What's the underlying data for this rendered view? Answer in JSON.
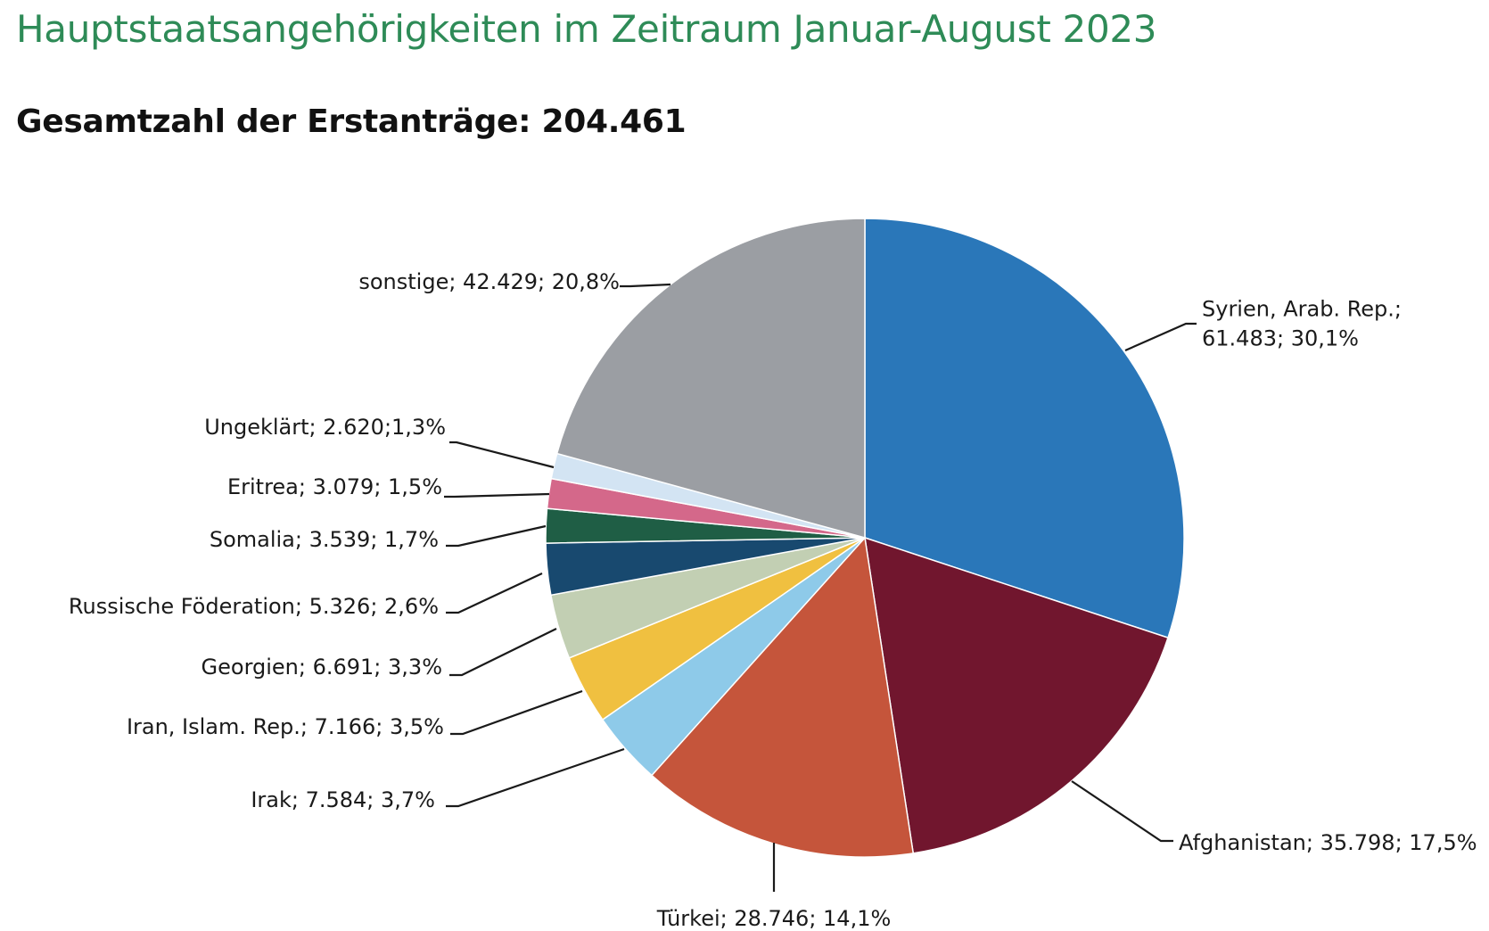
{
  "title": "Hauptstaatsangehörigkeiten im Zeitraum Januar-August 2023",
  "subtitle": "Gesamtzahl der Erstanträge: 204.461",
  "chart_data": {
    "type": "pie",
    "total": 204461,
    "slices": [
      {
        "label_lines": [
          "Syrien, Arab. Rep.;",
          "61.483; 30,1%"
        ],
        "value": 61483,
        "percent": 30.1,
        "color": "#2a77b9"
      },
      {
        "label_lines": [
          "Afghanistan; 35.798; 17,5%"
        ],
        "value": 35798,
        "percent": 17.5,
        "color": "#71162e"
      },
      {
        "label_lines": [
          "Türkei; 28.746; 14,1%"
        ],
        "value": 28746,
        "percent": 14.1,
        "color": "#c5553b"
      },
      {
        "label_lines": [
          "Irak; 7.584; 3,7%"
        ],
        "value": 7584,
        "percent": 3.7,
        "color": "#8ecae9"
      },
      {
        "label_lines": [
          "Iran, Islam. Rep.; 7.166; 3,5%"
        ],
        "value": 7166,
        "percent": 3.5,
        "color": "#f0c040"
      },
      {
        "label_lines": [
          "Georgien; 6.691; 3,3%"
        ],
        "value": 6691,
        "percent": 3.3,
        "color": "#c2cfb3"
      },
      {
        "label_lines": [
          "Russische Föderation; 5.326; 2,6%"
        ],
        "value": 5326,
        "percent": 2.6,
        "color": "#18496f"
      },
      {
        "label_lines": [
          "Somalia; 3.539; 1,7%"
        ],
        "value": 3539,
        "percent": 1.7,
        "color": "#1f5e45"
      },
      {
        "label_lines": [
          "Eritrea; 3.079; 1,5%"
        ],
        "value": 3079,
        "percent": 1.5,
        "color": "#d4688a"
      },
      {
        "label_lines": [
          "Ungeklärt; 2.620;1,3%"
        ],
        "value": 2620,
        "percent": 1.3,
        "color": "#d3e4f3"
      },
      {
        "label_lines": [
          "sonstige; 42.429; 20,8%"
        ],
        "value": 42429,
        "percent": 20.8,
        "color": "#9b9ea3"
      }
    ]
  }
}
